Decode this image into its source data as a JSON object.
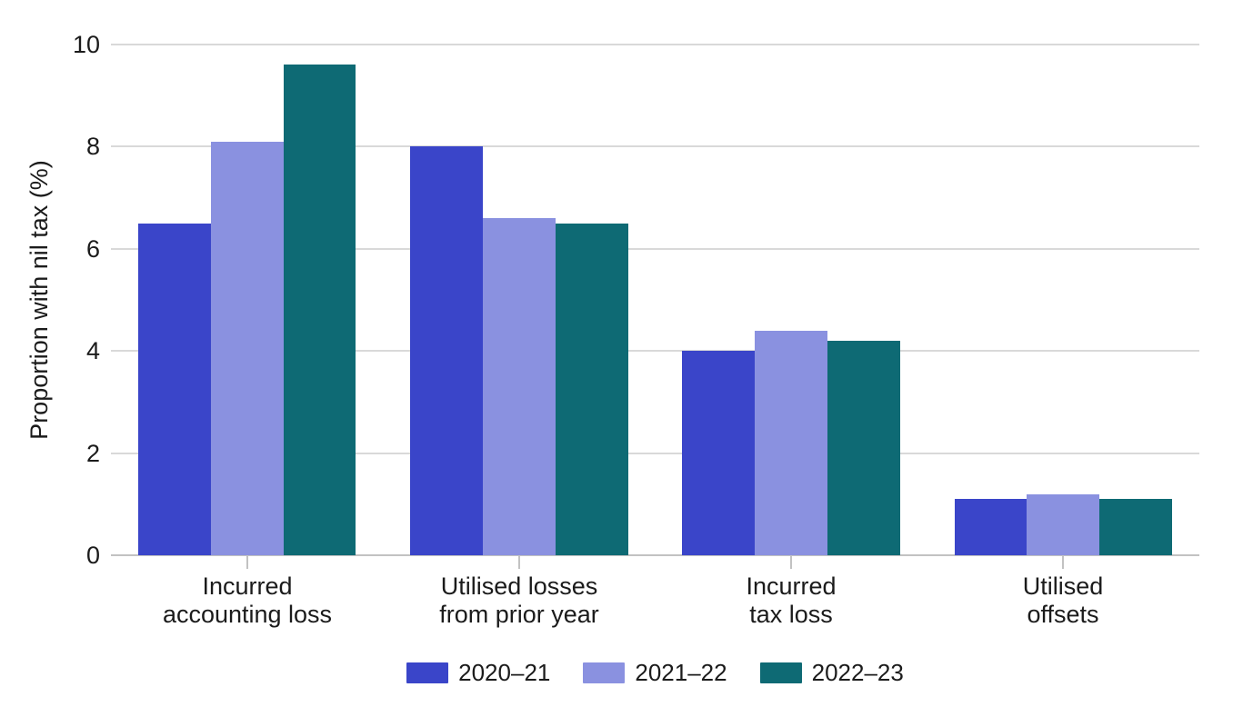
{
  "chart_data": {
    "type": "bar",
    "variant": "grouped-vertical",
    "title": "",
    "xlabel": "",
    "ylabel": "Proportion with nil tax (%)",
    "ylim": [
      0,
      10
    ],
    "yticks": [
      0,
      2,
      4,
      6,
      8,
      10
    ],
    "ytick_labels": [
      "0",
      "2",
      "4",
      "6",
      "8",
      "10"
    ],
    "grid": "horizontal",
    "legend_position": "bottom-center",
    "categories": [
      "Incurred accounting loss",
      "Utilised losses from prior year",
      "Incurred tax loss",
      "Utilised offsets"
    ],
    "category_label_lines": [
      [
        "Incurred",
        "accounting loss"
      ],
      [
        "Utilised losses",
        "from prior year"
      ],
      [
        "Incurred",
        "tax loss"
      ],
      [
        "Utilised",
        "offsets"
      ]
    ],
    "series": [
      {
        "name": "2020–21",
        "color": "#3a45c9",
        "values": [
          6.5,
          8.0,
          4.0,
          1.1
        ]
      },
      {
        "name": "2021–22",
        "color": "#8a91e0",
        "values": [
          8.1,
          6.6,
          4.4,
          1.2
        ]
      },
      {
        "name": "2022–23",
        "color": "#0e6a74",
        "values": [
          9.6,
          6.5,
          4.2,
          1.1
        ]
      }
    ],
    "colors": {
      "gridline": "#d9d9d9",
      "axis_line": "#c2c2c2",
      "text": "#1b1b1b"
    }
  }
}
